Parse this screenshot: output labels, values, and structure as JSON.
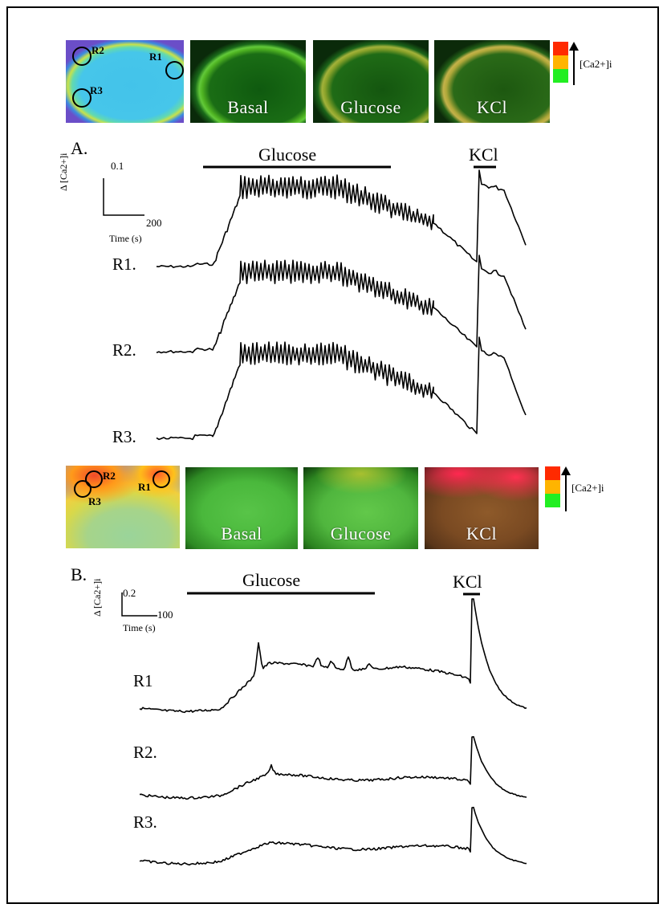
{
  "panel_a": {
    "letter": "A.",
    "stimuli": {
      "glucose": "Glucose",
      "kcl": "KCl"
    },
    "images": {
      "basal": "Basal",
      "glucose": "Glucose",
      "kcl": "KCl"
    },
    "roi": [
      "R1",
      "R2",
      "R3"
    ],
    "scale": {
      "y_value": "0.1",
      "x_value": "200",
      "x_label": "Time (s)",
      "y_label": "Δ [Ca2+]i"
    },
    "colorbar_label": "[Ca2+]i",
    "traces": [
      "R1.",
      "R2.",
      "R3."
    ]
  },
  "panel_b": {
    "letter": "B.",
    "stimuli": {
      "glucose": "Glucose",
      "kcl": "KCl"
    },
    "images": {
      "basal": "Basal",
      "glucose": "Glucose",
      "kcl": "KCl"
    },
    "roi": [
      "R2",
      "R1",
      "R3"
    ],
    "scale": {
      "y_value": "0.2",
      "x_value": "100",
      "x_label": "Time (s)",
      "y_label": "Δ [Ca2+]i"
    },
    "colorbar_label": "[Ca2+]i",
    "traces": [
      "R1",
      "R2.",
      "R3."
    ]
  },
  "colors": {
    "scale_red": "#ff2a00",
    "scale_orange": "#ffb400",
    "scale_green": "#22ee22"
  },
  "icons": [
    "up-arrow-icon"
  ]
}
